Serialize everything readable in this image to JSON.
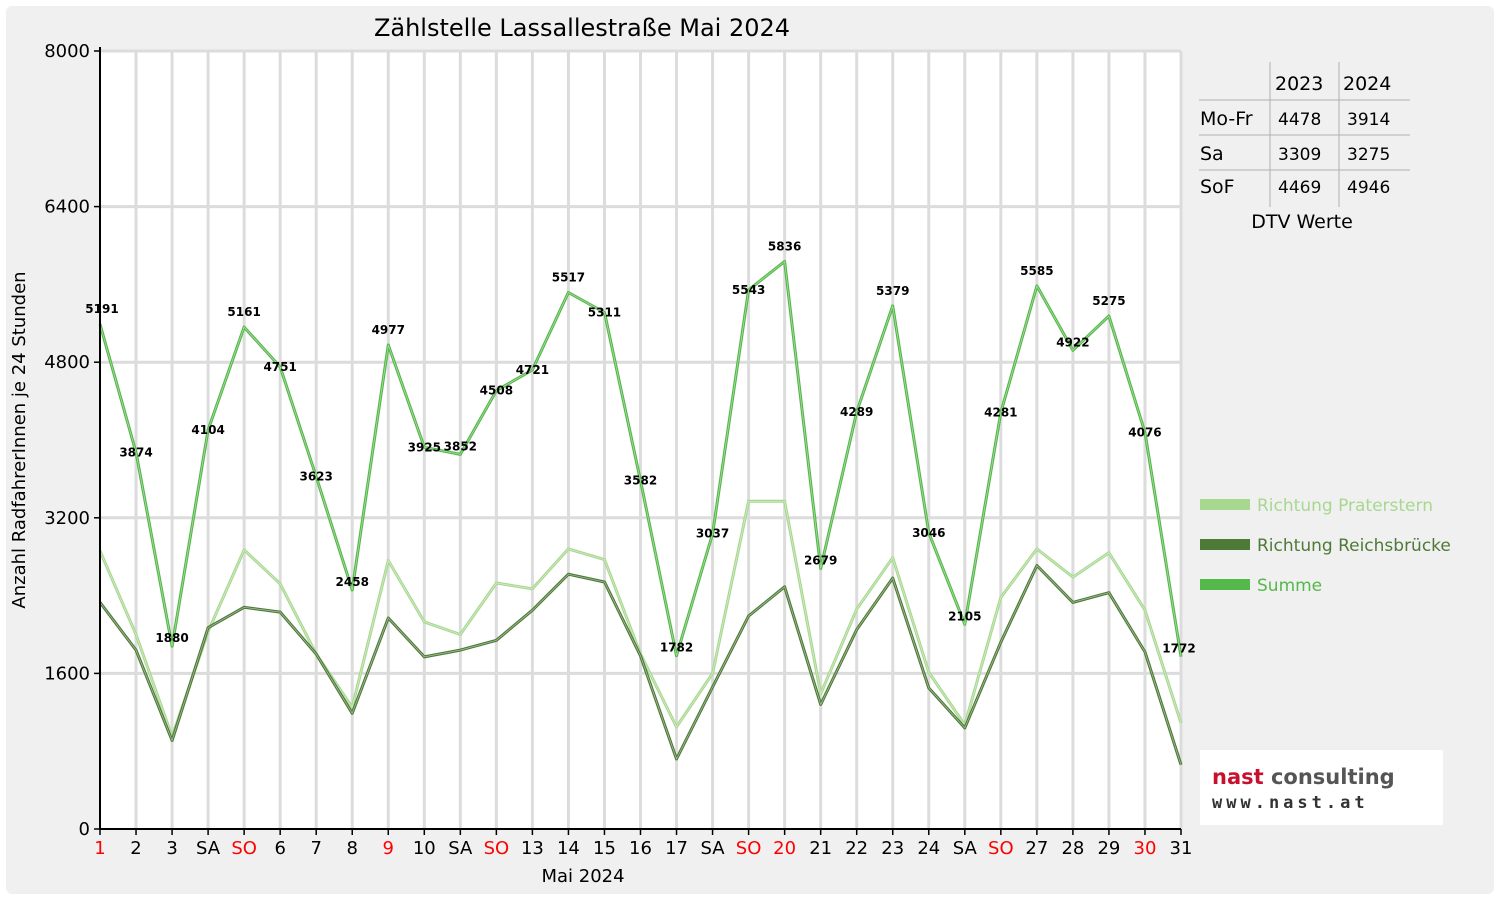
{
  "chart_data": {
    "type": "line",
    "title": "Zählstelle Lassallestraße Mai 2024",
    "xlabel": "Mai 2024",
    "ylabel": "Anzahl RadfahrerInnen je 24 Stunden",
    "ylim": [
      0,
      8000
    ],
    "yticks": [
      "0",
      "1600",
      "3200",
      "4800",
      "6400",
      "8000"
    ],
    "grid": true,
    "legend_position": "right",
    "categories": [
      "1",
      "2",
      "3",
      "SA",
      "SO",
      "6",
      "7",
      "8",
      "9",
      "10",
      "SA",
      "SO",
      "13",
      "14",
      "15",
      "16",
      "17",
      "SA",
      "SO",
      "20",
      "21",
      "22",
      "23",
      "24",
      "SA",
      "SO",
      "27",
      "28",
      "29",
      "30",
      "31"
    ],
    "category_colors": [
      "#ff0000",
      "#000000",
      "#000000",
      "#000000",
      "#ff0000",
      "#000000",
      "#000000",
      "#000000",
      "#ff0000",
      "#000000",
      "#000000",
      "#ff0000",
      "#000000",
      "#000000",
      "#000000",
      "#000000",
      "#000000",
      "#000000",
      "#ff0000",
      "#ff0000",
      "#000000",
      "#000000",
      "#000000",
      "#000000",
      "#000000",
      "#ff0000",
      "#000000",
      "#000000",
      "#000000",
      "#ff0000",
      "#000000"
    ],
    "series": [
      {
        "name": "Richtung Praterstern",
        "color": "#a8d890",
        "values": [
          2860,
          2000,
          950,
          2030,
          2870,
          2520,
          1800,
          1250,
          2760,
          2130,
          2000,
          2530,
          2470,
          2880,
          2770,
          1800,
          1050,
          1600,
          3370,
          3370,
          1390,
          2260,
          2790,
          1610,
          1070,
          2380,
          2880,
          2590,
          2840,
          2250,
          1090
        ]
      },
      {
        "name": "Richtung Reichsbrücke",
        "color": "#4e7a38",
        "values": [
          2330,
          1840,
          910,
          2070,
          2280,
          2230,
          1800,
          1190,
          2170,
          1770,
          1840,
          1940,
          2250,
          2620,
          2540,
          1780,
          720,
          1460,
          2190,
          2490,
          1280,
          2050,
          2580,
          1450,
          1040,
          1920,
          2710,
          2330,
          2430,
          1820,
          660
        ]
      },
      {
        "name": "Summe",
        "color": "#55b84a",
        "values": [
          5191,
          3874,
          1880,
          4104,
          5161,
          4751,
          3623,
          2458,
          4977,
          3925,
          3852,
          4508,
          4721,
          5517,
          5311,
          3582,
          1782,
          3037,
          5543,
          5836,
          2679,
          4289,
          5379,
          3046,
          2105,
          4281,
          5585,
          4922,
          5275,
          4076,
          1772
        ],
        "labels": [
          "5191",
          "3874",
          "1880",
          "4104",
          "5161",
          "4751",
          "3623",
          "2458",
          "4977",
          "3925",
          "3852",
          "4508",
          "4721",
          "5517",
          "5311",
          "3582",
          "1782",
          "3037",
          "5543",
          "5836",
          "2679",
          "4289",
          "5379",
          "3046",
          "2105",
          "4281",
          "5585",
          "4922",
          "5275",
          "4076",
          "1772"
        ]
      }
    ]
  },
  "dtv_table": {
    "headers": [
      "",
      "2023",
      "2024"
    ],
    "rows": [
      {
        "label": "Mo-Fr",
        "v2023": "4478",
        "v2024": "3914"
      },
      {
        "label": "Sa",
        "v2023": "3309",
        "v2024": "3275"
      },
      {
        "label": "SoF",
        "v2023": "4469",
        "v2024": "4946"
      }
    ],
    "caption": "DTV Werte"
  },
  "logo": {
    "line1_a": "nast",
    "line1_b": " consulting",
    "line2": "www.nast.at",
    "color_a": "#c8102e",
    "color_b": "#555555"
  }
}
